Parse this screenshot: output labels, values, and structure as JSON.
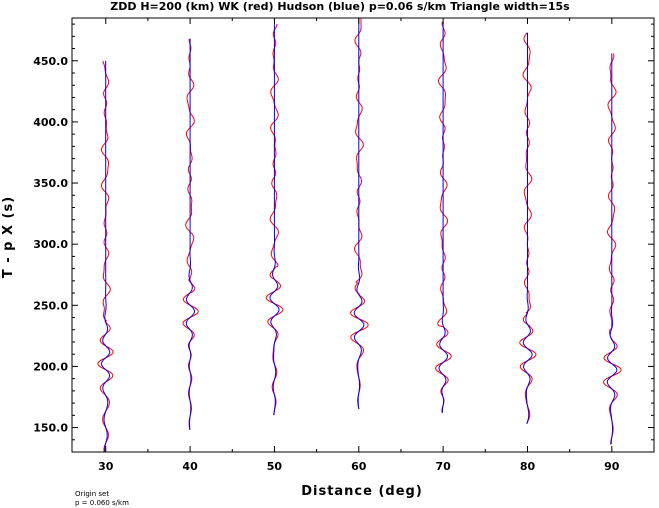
{
  "chart_data": {
    "type": "line",
    "title": "ZDD H=200 (km) WK (red) Hudson (blue) p=0.06 s/km Triangle width=15s",
    "xlabel": "Distance (deg)",
    "ylabel": "T - p X (s)",
    "xlim": [
      26,
      95
    ],
    "ylim": [
      130,
      485
    ],
    "xticks": [
      30,
      40,
      50,
      60,
      70,
      80,
      90
    ],
    "xtick_labels": [
      "30",
      "40",
      "50",
      "60",
      "70",
      "80",
      "90"
    ],
    "yticks": [
      150,
      200,
      250,
      300,
      350,
      400,
      450
    ],
    "ytick_labels": [
      "150.0",
      "200.0",
      "250.0",
      "300.0",
      "350.0",
      "400.0",
      "450.0"
    ],
    "series_colors": {
      "wk": "#ff0000",
      "hudson": "#0000ff"
    },
    "traces": [
      {
        "distance": 30,
        "t_start": 130,
        "t_end": 450
      },
      {
        "distance": 40,
        "t_start": 148,
        "t_end": 468
      },
      {
        "distance": 50,
        "t_start": 160,
        "t_end": 480
      },
      {
        "distance": 60,
        "t_start": 165,
        "t_end": 485
      },
      {
        "distance": 70,
        "t_start": 162,
        "t_end": 482
      },
      {
        "distance": 80,
        "t_start": 153,
        "t_end": 473
      },
      {
        "distance": 90,
        "t_start": 136,
        "t_end": 456
      }
    ],
    "legend": "none"
  },
  "footnote": {
    "line1": "Origin set",
    "line2": "p = 0.060 s/km"
  }
}
